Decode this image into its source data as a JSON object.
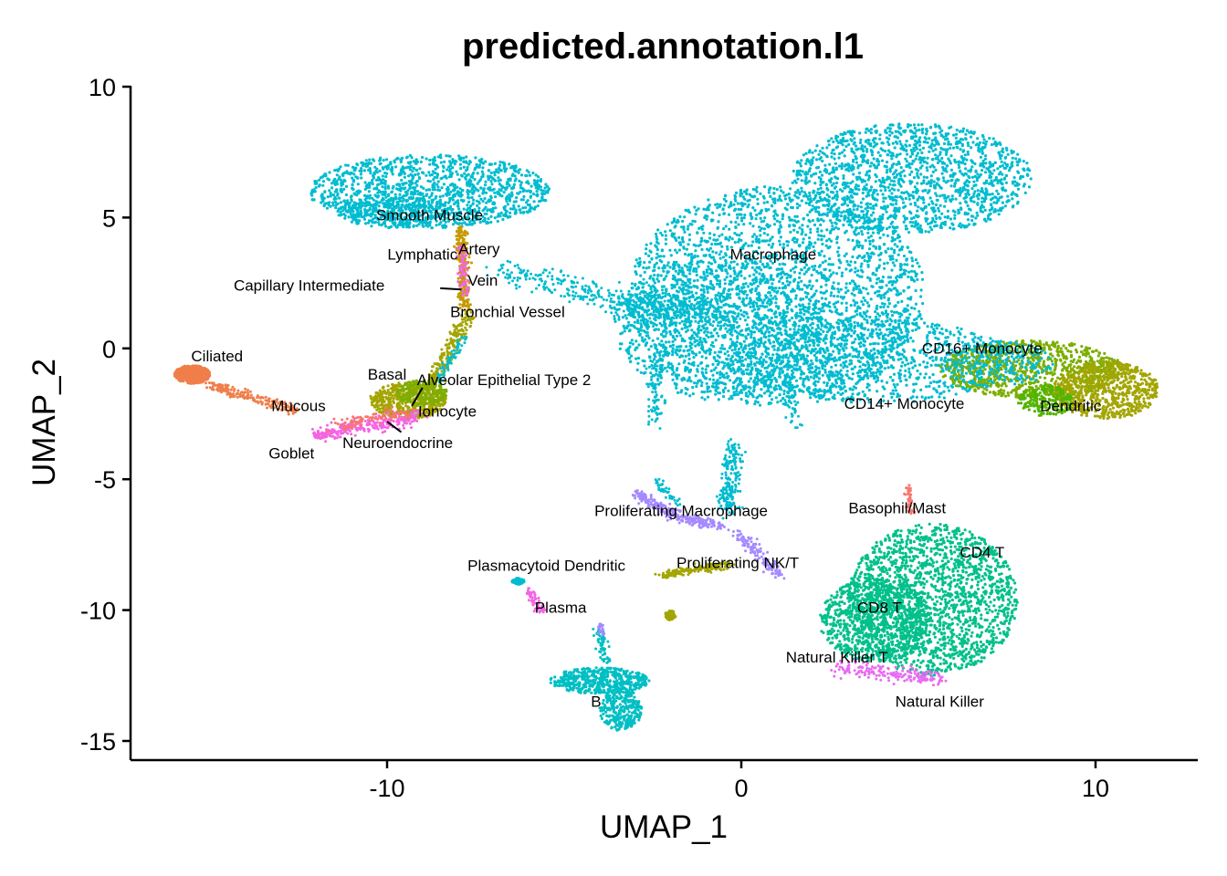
{
  "chart_data": {
    "type": "scatter",
    "title": "predicted.annotation.l1",
    "xlabel": "UMAP_1",
    "ylabel": "UMAP_2",
    "xlim": [
      -17.3,
      12.8
    ],
    "ylim": [
      -15.8,
      10.0
    ],
    "x_ticks": [
      -10,
      0,
      10
    ],
    "x_tick_labels": [
      "-10",
      "0",
      "10"
    ],
    "y_ticks": [
      10,
      5,
      0,
      -5,
      -10,
      -15
    ],
    "y_tick_labels": [
      "10",
      "5",
      "0",
      "-5",
      "-10",
      "-15"
    ],
    "grid": false,
    "legend": "none",
    "colors": {
      "macrophage": "#00BCD0",
      "tcell": "#00C08B",
      "monocyte": "#7CAE00",
      "olive": "#A3A500",
      "proliferating": "#A58AFF",
      "ciliated": "#F07E4A",
      "pink": "#F564E3",
      "magenta": "#E76BF3",
      "mast": "#F8766D",
      "b": "#00BFC4",
      "gold": "#C49A00",
      "darkgreen": "#53B400"
    },
    "clusters": [
      {
        "name": "Macrophage",
        "x": 0.9,
        "y": 3.4
      },
      {
        "name": "Smooth Muscle",
        "x": -8.8,
        "y": 4.9
      },
      {
        "name": "Lymphatic",
        "x": -9.0,
        "y": 3.4
      },
      {
        "name": "Artery",
        "x": -7.4,
        "y": 3.6
      },
      {
        "name": "Vein",
        "x": -7.3,
        "y": 2.4
      },
      {
        "name": "Capillary Intermediate",
        "x": -12.2,
        "y": 2.2
      },
      {
        "name": "Bronchial Vessel",
        "x": -6.6,
        "y": 1.2
      },
      {
        "name": "Ciliated",
        "x": -14.8,
        "y": -0.5
      },
      {
        "name": "Basal",
        "x": -10.0,
        "y": -1.2
      },
      {
        "name": "Alveolar Epithelial Type 2",
        "x": -6.7,
        "y": -1.4
      },
      {
        "name": "Mucous",
        "x": -12.5,
        "y": -2.4
      },
      {
        "name": "Ionocyte",
        "x": -8.3,
        "y": -2.6
      },
      {
        "name": "Neuroendocrine",
        "x": -9.7,
        "y": -3.8
      },
      {
        "name": "Goblet",
        "x": -12.7,
        "y": -4.2
      },
      {
        "name": "CD16+ Monocyte",
        "x": 6.8,
        "y": -0.2
      },
      {
        "name": "CD14+ Monocyte",
        "x": 4.6,
        "y": -2.3
      },
      {
        "name": "Dendritic",
        "x": 9.3,
        "y": -2.4
      },
      {
        "name": "Proliferating Macrophage",
        "x": -1.7,
        "y": -6.4
      },
      {
        "name": "Basophil/Mast",
        "x": 4.4,
        "y": -6.3
      },
      {
        "name": "CD4 T",
        "x": 6.8,
        "y": -8.0
      },
      {
        "name": "Proliferating NK/T",
        "x": -0.1,
        "y": -8.4
      },
      {
        "name": "Plasmacytoid Dendritic",
        "x": -5.5,
        "y": -8.5
      },
      {
        "name": "CD8 T",
        "x": 3.9,
        "y": -10.1
      },
      {
        "name": "Plasma",
        "x": -5.1,
        "y": -10.1
      },
      {
        "name": "Natural Killer T",
        "x": 2.7,
        "y": -12.0
      },
      {
        "name": "B",
        "x": -4.1,
        "y": -13.7
      },
      {
        "name": "Natural Killer",
        "x": 5.6,
        "y": -13.7
      }
    ]
  }
}
